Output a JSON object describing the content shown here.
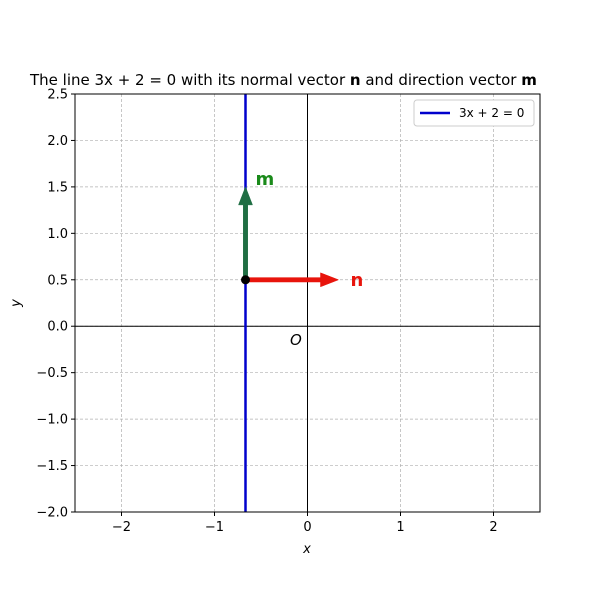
{
  "chart_data": {
    "type": "line",
    "title": {
      "prefix": "The line 3x + 2 = 0 with its normal vector ",
      "n": "n",
      "middle": " and direction vector ",
      "m": "m"
    },
    "xlabel": "x",
    "ylabel": "y",
    "xlim": [
      -2.5,
      2.5
    ],
    "ylim": [
      -2.0,
      2.5
    ],
    "xticks": [
      -2,
      -1,
      0,
      1,
      2
    ],
    "xtick_labels": [
      "−2",
      "−1",
      "0",
      "1",
      "2"
    ],
    "yticks": [
      -2.0,
      -1.5,
      -1.0,
      -0.5,
      0.0,
      0.5,
      1.0,
      1.5,
      2.0,
      2.5
    ],
    "ytick_labels": [
      "−2.0",
      "−1.5",
      "−1.0",
      "−0.5",
      "0.0",
      "0.5",
      "1.0",
      "1.5",
      "2.0",
      "2.5"
    ],
    "grid": true,
    "legend_position": "top-right",
    "series": [
      {
        "name": "3x + 2 = 0",
        "x": [
          -0.6667,
          -0.6667
        ],
        "y": [
          -2.0,
          2.5
        ],
        "color": "#0000cc"
      }
    ],
    "point": {
      "x": -0.6667,
      "y": 0.5,
      "color": "#000000"
    },
    "vectors": [
      {
        "label": "n",
        "from": [
          -0.6667,
          0.5
        ],
        "to": [
          0.3333,
          0.5
        ],
        "color": "#e8140c",
        "label_color": "#e8140c"
      },
      {
        "label": "m",
        "from": [
          -0.6667,
          0.5
        ],
        "to": [
          -0.6667,
          1.5
        ],
        "color": "#1f6e43",
        "label_color": "#1a8a1a"
      }
    ],
    "origin_label": "O"
  }
}
